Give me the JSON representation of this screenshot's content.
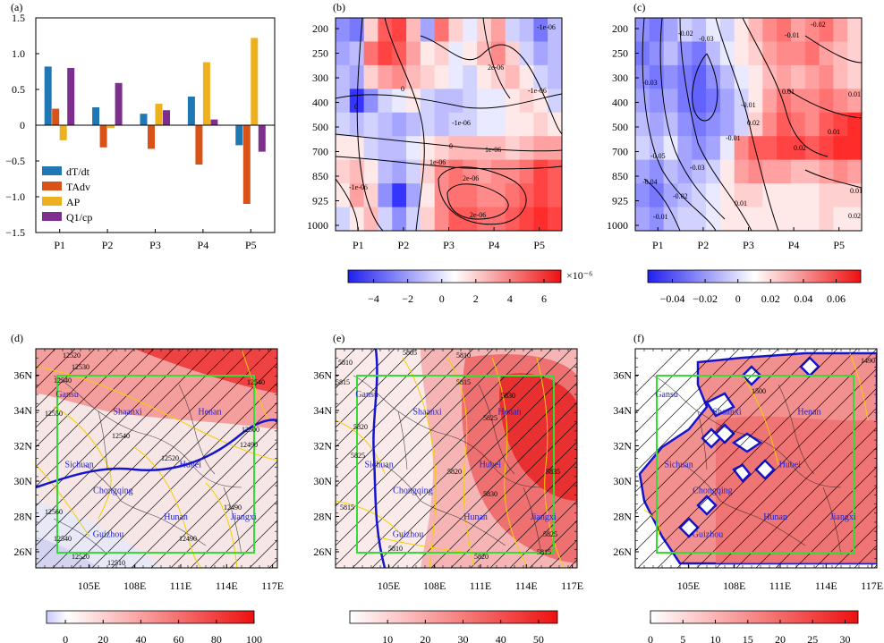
{
  "colors": {
    "dTdt": "#1f77b4",
    "TAdv": "#d95319",
    "AP": "#edb120",
    "Q1": "#7e2f8e",
    "box": "#33dd33",
    "contour_yellow": "#f0d000",
    "contour_blue": "#1515cc"
  },
  "chart_data": [
    {
      "panel": "(a)",
      "type": "bar",
      "categories": [
        "P1",
        "P2",
        "P3",
        "P4",
        "P5"
      ],
      "series": [
        {
          "name": "dT/dt",
          "values": [
            0.82,
            0.25,
            0.16,
            0.4,
            -0.28
          ]
        },
        {
          "name": "TAdv",
          "values": [
            0.23,
            -0.31,
            -0.33,
            -0.55,
            -1.1
          ]
        },
        {
          "name": "AP",
          "values": [
            -0.21,
            -0.04,
            0.3,
            0.88,
            1.22
          ]
        },
        {
          "name": "Q1/cp",
          "values": [
            0.8,
            0.59,
            0.21,
            0.08,
            -0.37
          ]
        }
      ],
      "legend_labels": {
        "dTdt": "dT/dt",
        "TAdv": "TAdv",
        "AP": "AP",
        "Q1": "Q1/cp"
      },
      "ylim": [
        -1.5,
        1.5
      ],
      "yticks": [
        "−1.5",
        "−1.0",
        "−0.5",
        "0",
        "0.5",
        "1.0",
        "1.5"
      ],
      "legend_position": "lower-left"
    },
    {
      "panel": "(b)",
      "type": "heatmap",
      "x": [
        "P1",
        "P2",
        "P3",
        "P4",
        "P5"
      ],
      "y": [
        "200",
        "250",
        "300",
        "400",
        "500",
        "700",
        "850",
        "925",
        "1000"
      ],
      "colorbar_ticks": [
        "−4",
        "−2",
        "0",
        "2",
        "4",
        "6"
      ],
      "colorbar_range": [
        -5.5,
        7
      ],
      "colorbar_exponent": "×10⁻⁶",
      "contour_labels": [
        "-1e-06",
        "0",
        "1e-06",
        "2e-06"
      ]
    },
    {
      "panel": "(c)",
      "type": "heatmap",
      "x": [
        "P1",
        "P2",
        "P3",
        "P4",
        "P5"
      ],
      "y": [
        "200",
        "250",
        "300",
        "400",
        "500",
        "700",
        "850",
        "925",
        "1000"
      ],
      "colorbar_ticks": [
        "−0.04",
        "−0.02",
        "0",
        "0.02",
        "0.04",
        "0.06"
      ],
      "colorbar_range": [
        -0.055,
        0.075
      ],
      "contour_labels": [
        "-0.05",
        "-0.04",
        "-0.03",
        "-0.02",
        "-0.01",
        "0",
        "0.01",
        "0.02"
      ]
    },
    {
      "panel": "(d)",
      "type": "heatmap",
      "lon_ticks": [
        "105E",
        "108E",
        "111E",
        "114E",
        "117E"
      ],
      "lat_ticks": [
        "26N",
        "28N",
        "30N",
        "32N",
        "34N",
        "36N"
      ],
      "colorbar_ticks": [
        "0",
        "20",
        "40",
        "60",
        "80",
        "100"
      ],
      "colorbar_range": [
        -10,
        100
      ],
      "contour_labels": [
        "12520",
        "12530",
        "12540",
        "12550",
        "12560",
        "12490",
        "12500",
        "12510"
      ]
    },
    {
      "panel": "(e)",
      "type": "heatmap",
      "lon_ticks": [
        "105E",
        "108E",
        "111E",
        "114E",
        "117E"
      ],
      "lat_ticks": [
        "26N",
        "28N",
        "30N",
        "32N",
        "34N",
        "36N"
      ],
      "colorbar_ticks": [
        "10",
        "20",
        "30",
        "40",
        "50"
      ],
      "colorbar_range": [
        0,
        55
      ],
      "contour_labels": [
        "5805",
        "5810",
        "5815",
        "5820",
        "5825",
        "5830",
        "5835"
      ]
    },
    {
      "panel": "(f)",
      "type": "heatmap",
      "lon_ticks": [
        "105E",
        "108E",
        "111E",
        "114E",
        "117E"
      ],
      "lat_ticks": [
        "26N",
        "28N",
        "30N",
        "32N",
        "34N",
        "36N"
      ],
      "colorbar_ticks": [
        "0",
        "5",
        "10",
        "15",
        "20",
        "25",
        "30"
      ],
      "colorbar_range": [
        0,
        32
      ],
      "contour_labels": [
        "1490",
        "1500"
      ]
    }
  ],
  "provinces": [
    "Gansu",
    "Shaanxi",
    "Henan",
    "Sichuan",
    "Hubei",
    "Chongqing",
    "Hunan",
    "Jiangxi",
    "Guizhou"
  ]
}
